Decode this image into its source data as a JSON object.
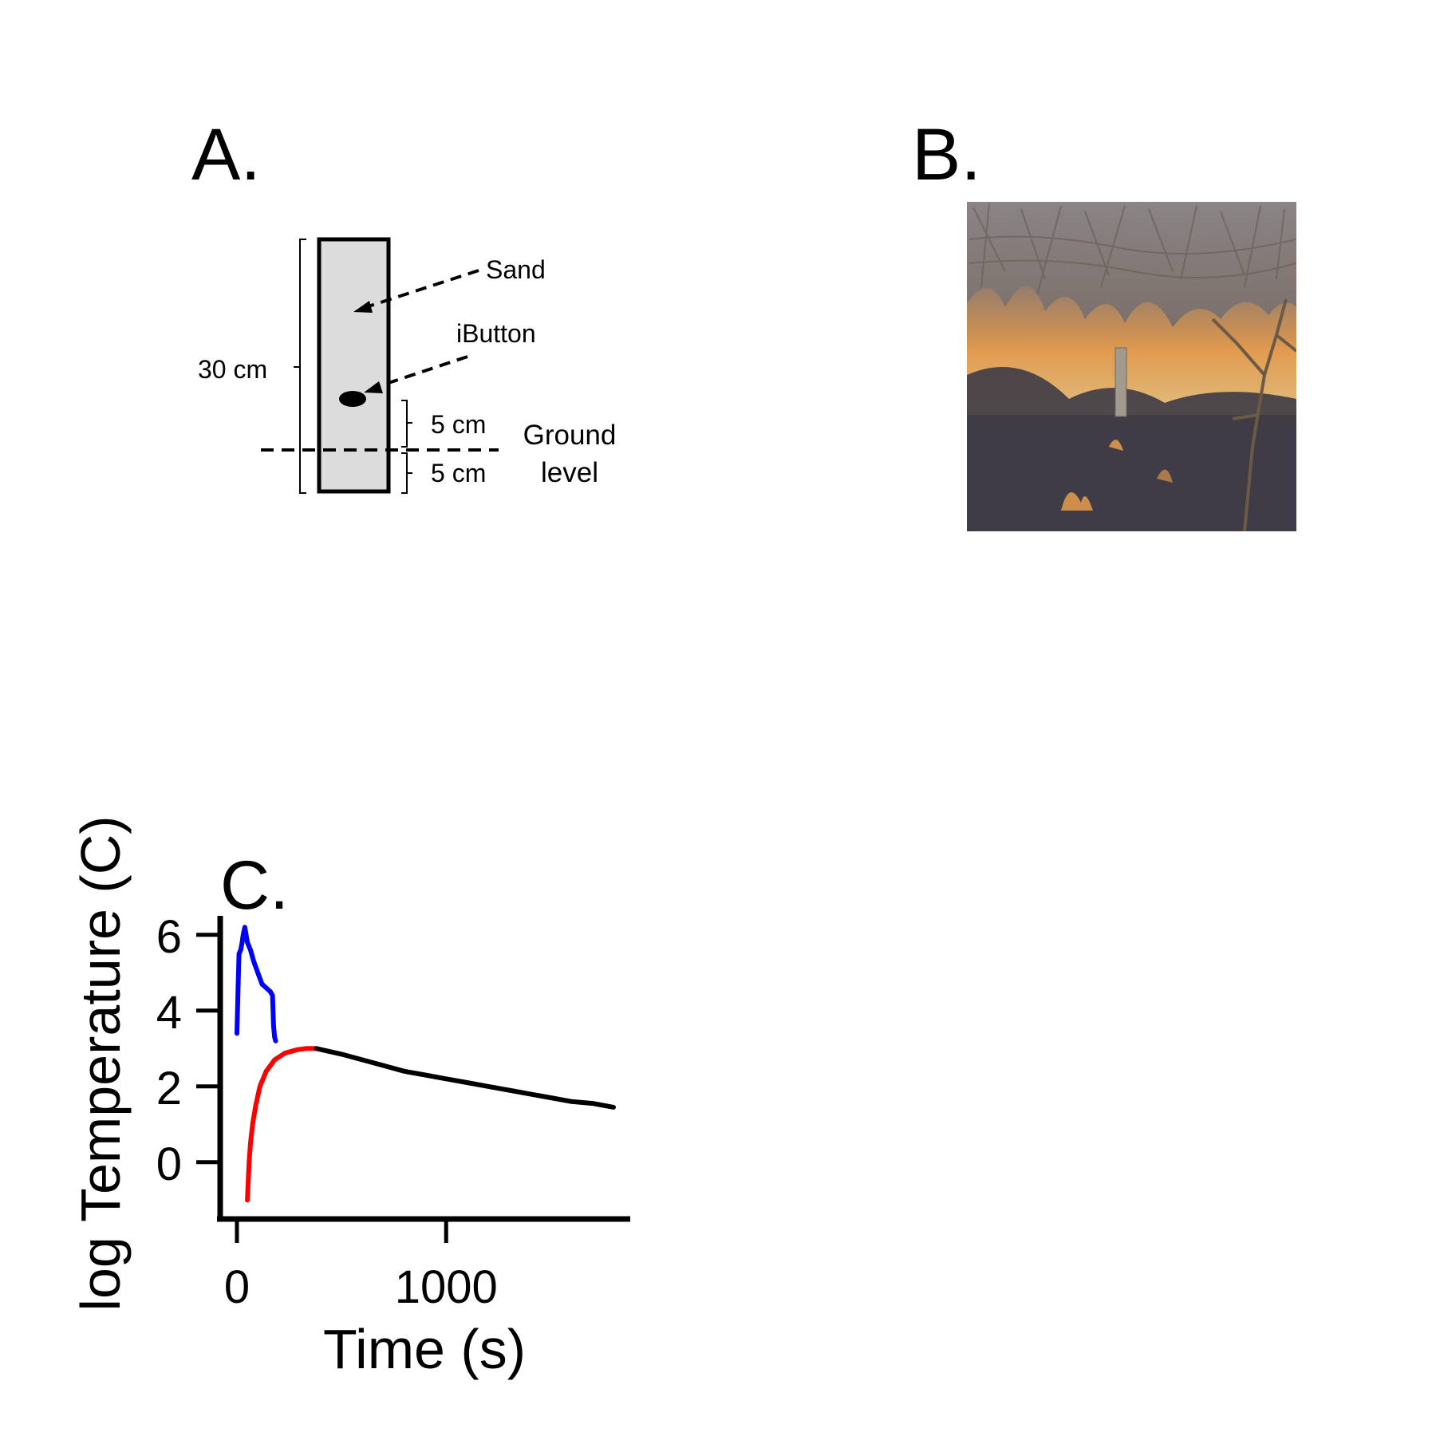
{
  "panels": {
    "a": {
      "letter": "A.",
      "labels": {
        "sand": "Sand",
        "ibutton": "iButton",
        "height": "30 cm",
        "above": "5 cm",
        "below": "5 cm",
        "ground_line1": "Ground",
        "ground_line2": "level"
      }
    },
    "b": {
      "letter": "B."
    },
    "c": {
      "letter": "C."
    }
  },
  "chart_data": {
    "type": "line",
    "xlabel": "Time (s)",
    "ylabel": "log Temperature (C)",
    "xlim": [
      -80,
      1880
    ],
    "ylim": [
      -1.5,
      6.5
    ],
    "x_ticks": [
      0,
      1000
    ],
    "y_ticks": [
      0,
      2,
      4,
      6
    ],
    "x_tick_labels": [
      "0",
      "1000"
    ],
    "y_tick_labels": [
      "0",
      "2",
      "4",
      "6"
    ],
    "grid": false,
    "series": [
      {
        "color": "#0000ff",
        "points": [
          [
            0,
            3.4
          ],
          [
            5,
            4.5
          ],
          [
            10,
            5.5
          ],
          [
            18,
            5.6
          ],
          [
            25,
            5.8
          ],
          [
            30,
            6.0
          ],
          [
            38,
            6.2
          ],
          [
            50,
            5.8
          ],
          [
            65,
            5.6
          ],
          [
            80,
            5.3
          ],
          [
            100,
            5.0
          ],
          [
            120,
            4.7
          ],
          [
            140,
            4.6
          ],
          [
            160,
            4.5
          ],
          [
            170,
            4.4
          ],
          [
            175,
            3.6
          ],
          [
            180,
            3.3
          ],
          [
            185,
            3.2
          ]
        ]
      },
      {
        "color": "#ff0000",
        "points": [
          [
            50,
            -1.0
          ],
          [
            58,
            0.0
          ],
          [
            65,
            0.5
          ],
          [
            75,
            1.0
          ],
          [
            90,
            1.5
          ],
          [
            110,
            2.0
          ],
          [
            140,
            2.4
          ],
          [
            180,
            2.7
          ],
          [
            230,
            2.88
          ],
          [
            290,
            2.97
          ],
          [
            330,
            3.0
          ],
          [
            380,
            3.0
          ]
        ]
      },
      {
        "color": "#000000",
        "points": [
          [
            380,
            3.0
          ],
          [
            500,
            2.85
          ],
          [
            600,
            2.7
          ],
          [
            700,
            2.55
          ],
          [
            800,
            2.4
          ],
          [
            900,
            2.3
          ],
          [
            1000,
            2.2
          ],
          [
            1100,
            2.1
          ],
          [
            1200,
            2.0
          ],
          [
            1300,
            1.9
          ],
          [
            1400,
            1.8
          ],
          [
            1500,
            1.7
          ],
          [
            1600,
            1.6
          ],
          [
            1700,
            1.55
          ],
          [
            1800,
            1.45
          ]
        ]
      }
    ]
  }
}
